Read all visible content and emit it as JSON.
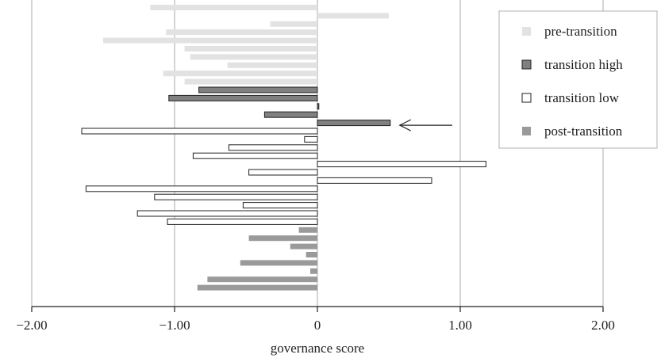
{
  "chart_data": {
    "type": "bar",
    "orientation": "horizontal",
    "xlabel": "governance score",
    "xlim": [
      -2,
      2
    ],
    "xticks": [
      -2,
      -1,
      0,
      1,
      2
    ],
    "xtick_labels": [
      "−2.00",
      "−1.00",
      "0",
      "1.00",
      "2.00"
    ],
    "grid": "vertical",
    "legend_position": "top-right",
    "series": [
      {
        "name": "pre-transition",
        "color": "#e2e2e2",
        "outline": "none",
        "values": [
          -1.17,
          0.5,
          -0.33,
          -1.06,
          -1.5,
          -0.93,
          -0.89,
          -0.63,
          -1.08,
          -0.93
        ]
      },
      {
        "name": "transition high",
        "color": "#808080",
        "outline": "#222222",
        "values": [
          -0.83,
          -1.04,
          0.01,
          -0.37,
          0.51
        ]
      },
      {
        "name": "transition low",
        "color": "#ffffff",
        "outline": "#222222",
        "values": [
          -1.65,
          -0.09,
          -0.62,
          -0.87,
          1.18,
          -0.48,
          0.8,
          -1.62,
          -1.14,
          -0.52,
          -1.26,
          -1.05
        ]
      },
      {
        "name": "post-transition",
        "color": "#9a9a9a",
        "outline": "none",
        "values": [
          -0.13,
          -0.48,
          -0.19,
          -0.08,
          -0.54,
          -0.05,
          -0.77,
          -0.84
        ]
      }
    ],
    "annotations": [
      {
        "type": "arrow",
        "points_to": "transition high, last bar (0.51)",
        "text": ""
      }
    ]
  }
}
